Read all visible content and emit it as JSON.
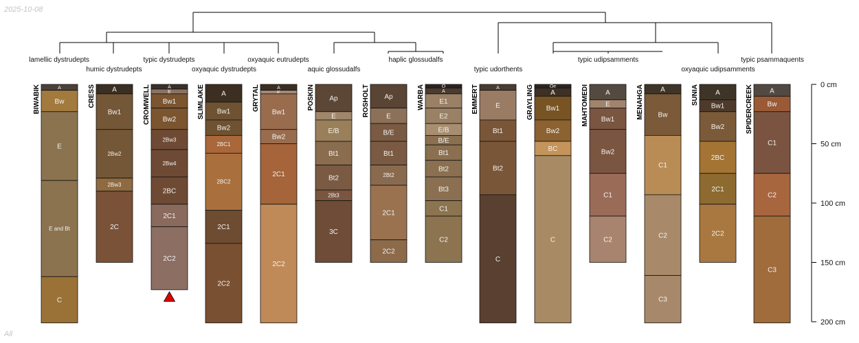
{
  "date_stamp": "2025-10-08",
  "footer_tag": "All",
  "depth_axis": {
    "unit": "cm",
    "max_depth_cm": 200,
    "ticks": [
      {
        "value": 0,
        "label": "0 cm"
      },
      {
        "value": 50,
        "label": "50 cm"
      },
      {
        "value": 100,
        "label": "100 cm"
      },
      {
        "value": 150,
        "label": "150 cm"
      },
      {
        "value": 200,
        "label": "200 cm"
      }
    ]
  },
  "taxa": [
    {
      "label": "lamellic dystrudepts"
    },
    {
      "label": "humic dystrudepts"
    },
    {
      "label": "typic dystrudepts"
    },
    {
      "label": "oxyaquic dystrudepts"
    },
    {
      "label": "oxyaquic eutrudepts"
    },
    {
      "label": "aquic glossudalfs"
    },
    {
      "label": "haplic glossudalfs"
    },
    {
      "label": "typic udorthents"
    },
    {
      "label": "typic udipsamments"
    },
    {
      "label": "oxyaquic udipsamments"
    },
    {
      "label": "typic psammaquents"
    }
  ],
  "profiles": [
    {
      "name": "BIWABIK",
      "horizons": [
        {
          "name": "A",
          "top": 0,
          "bottom": 5,
          "color": "#4a423a"
        },
        {
          "name": "Bw",
          "top": 5,
          "bottom": 23,
          "color": "#a27a3e"
        },
        {
          "name": "E",
          "top": 23,
          "bottom": 81,
          "color": "#8c7350"
        },
        {
          "name": "E and Bt",
          "top": 81,
          "bottom": 162,
          "color": "#8c7350"
        },
        {
          "name": "C",
          "top": 162,
          "bottom": 201,
          "color": "#9a7238"
        }
      ]
    },
    {
      "name": "CRESS",
      "horizons": [
        {
          "name": "A",
          "top": 0,
          "bottom": 8,
          "color": "#3b2e22"
        },
        {
          "name": "Bw1",
          "top": 8,
          "bottom": 38,
          "color": "#745737"
        },
        {
          "name": "2Bw2",
          "top": 38,
          "bottom": 79,
          "color": "#745737"
        },
        {
          "name": "2Bw3",
          "top": 79,
          "bottom": 90,
          "color": "#8f6a40"
        },
        {
          "name": "2C",
          "top": 90,
          "bottom": 150,
          "color": "#7a5238"
        }
      ]
    },
    {
      "name": "CROMWELL",
      "horizons": [
        {
          "name": "A",
          "top": 0,
          "bottom": 4,
          "color": "#3a3028"
        },
        {
          "name": "E",
          "top": 4,
          "bottom": 8,
          "color": "#8c7262"
        },
        {
          "name": "Bw1",
          "top": 8,
          "bottom": 20,
          "color": "#7a5530"
        },
        {
          "name": "Bw2",
          "top": 20,
          "bottom": 38,
          "color": "#7a5530"
        },
        {
          "name": "2Bw3",
          "top": 38,
          "bottom": 55,
          "color": "#6e4a34"
        },
        {
          "name": "2Bw4",
          "top": 55,
          "bottom": 78,
          "color": "#6e4a34"
        },
        {
          "name": "2BC",
          "top": 78,
          "bottom": 101,
          "color": "#6e4a34"
        },
        {
          "name": "2C1",
          "top": 101,
          "bottom": 120,
          "color": "#8a6a5c"
        },
        {
          "name": "2C2",
          "top": 120,
          "bottom": 173,
          "color": "#8c6e62"
        }
      ],
      "marker": true
    },
    {
      "name": "SLIMLAKE",
      "horizons": [
        {
          "name": "A",
          "top": 0,
          "bottom": 15,
          "color": "#3c2f22"
        },
        {
          "name": "Bw1",
          "top": 15,
          "bottom": 30,
          "color": "#6e5232"
        },
        {
          "name": "Bw2",
          "top": 30,
          "bottom": 43,
          "color": "#6e5232"
        },
        {
          "name": "2BC1",
          "top": 43,
          "bottom": 58,
          "color": "#a9673a"
        },
        {
          "name": "2BC2",
          "top": 58,
          "bottom": 106,
          "color": "#a9703e"
        },
        {
          "name": "2C1",
          "top": 106,
          "bottom": 134,
          "color": "#6e4c32"
        },
        {
          "name": "2C2",
          "top": 134,
          "bottom": 201,
          "color": "#7a5032"
        }
      ]
    },
    {
      "name": "GRYTAL",
      "horizons": [
        {
          "name": "A",
          "top": 0,
          "bottom": 5,
          "color": "#3c2f22"
        },
        {
          "name": "E",
          "top": 5,
          "bottom": 8,
          "color": "#a08a7a"
        },
        {
          "name": "Bw1",
          "top": 8,
          "bottom": 38,
          "color": "#9a6c4e"
        },
        {
          "name": "Bw2",
          "top": 38,
          "bottom": 50,
          "color": "#9a6c4e"
        },
        {
          "name": "2C1",
          "top": 50,
          "bottom": 101,
          "color": "#a5643a"
        },
        {
          "name": "2C2",
          "top": 101,
          "bottom": 201,
          "color": "#c08a58"
        }
      ]
    },
    {
      "name": "POSKIN",
      "horizons": [
        {
          "name": "Ap",
          "top": 0,
          "bottom": 23,
          "color": "#5c4636"
        },
        {
          "name": "E",
          "top": 23,
          "bottom": 30,
          "color": "#a0866a"
        },
        {
          "name": "E/B",
          "top": 30,
          "bottom": 48,
          "color": "#9a805a"
        },
        {
          "name": "Bt1",
          "top": 48,
          "bottom": 68,
          "color": "#8a6c4e"
        },
        {
          "name": "Bt2",
          "top": 68,
          "bottom": 89,
          "color": "#7a5a42"
        },
        {
          "name": "2Bt3",
          "top": 89,
          "bottom": 98,
          "color": "#7a5540"
        },
        {
          "name": "3C",
          "top": 98,
          "bottom": 150,
          "color": "#6e4c38"
        }
      ]
    },
    {
      "name": "ROSHOLT",
      "horizons": [
        {
          "name": "Ap",
          "top": 0,
          "bottom": 20,
          "color": "#5a4434"
        },
        {
          "name": "E",
          "top": 20,
          "bottom": 33,
          "color": "#8c7058"
        },
        {
          "name": "B/E",
          "top": 33,
          "bottom": 48,
          "color": "#7a5a42"
        },
        {
          "name": "Bt1",
          "top": 48,
          "bottom": 68,
          "color": "#7a5a42"
        },
        {
          "name": "2Bt2",
          "top": 68,
          "bottom": 85,
          "color": "#8a6a4e"
        },
        {
          "name": "2C1",
          "top": 85,
          "bottom": 131,
          "color": "#9a7250"
        },
        {
          "name": "2C2",
          "top": 131,
          "bottom": 150,
          "color": "#8c6a4a"
        }
      ]
    },
    {
      "name": "WARBA",
      "horizons": [
        {
          "name": "O",
          "top": 0,
          "bottom": 3,
          "color": "#2e2420"
        },
        {
          "name": "A",
          "top": 3,
          "bottom": 8,
          "color": "#4a3c30"
        },
        {
          "name": "E1",
          "top": 8,
          "bottom": 20,
          "color": "#9a8064"
        },
        {
          "name": "E2",
          "top": 20,
          "bottom": 33,
          "color": "#9a8064"
        },
        {
          "name": "E/B",
          "top": 33,
          "bottom": 43,
          "color": "#a88e70"
        },
        {
          "name": "B/E",
          "top": 43,
          "bottom": 51,
          "color": "#8a7050"
        },
        {
          "name": "Bt1",
          "top": 51,
          "bottom": 64,
          "color": "#8a7050"
        },
        {
          "name": "Bt2",
          "top": 64,
          "bottom": 78,
          "color": "#8a7050"
        },
        {
          "name": "Bt3",
          "top": 78,
          "bottom": 98,
          "color": "#8a7050"
        },
        {
          "name": "C1",
          "top": 98,
          "bottom": 111,
          "color": "#8c7450"
        },
        {
          "name": "C2",
          "top": 111,
          "bottom": 150,
          "color": "#8c7450"
        }
      ]
    },
    {
      "name": "EMMERT",
      "horizons": [
        {
          "name": "A",
          "top": 0,
          "bottom": 5,
          "color": "#4a3c30"
        },
        {
          "name": "E",
          "top": 5,
          "bottom": 30,
          "color": "#9a7c64"
        },
        {
          "name": "Bt1",
          "top": 30,
          "bottom": 48,
          "color": "#7a5638"
        },
        {
          "name": "Bt2",
          "top": 48,
          "bottom": 93,
          "color": "#7a5638"
        },
        {
          "name": "C",
          "top": 93,
          "bottom": 201,
          "color": "#5a4030"
        }
      ]
    },
    {
      "name": "GRAYLING",
      "horizons": [
        {
          "name": "Oe",
          "top": 0,
          "bottom": 3,
          "color": "#2e2620"
        },
        {
          "name": "A",
          "top": 3,
          "bottom": 10,
          "color": "#3e3024"
        },
        {
          "name": "Bw1",
          "top": 10,
          "bottom": 30,
          "color": "#785424"
        },
        {
          "name": "Bw2",
          "top": 30,
          "bottom": 48,
          "color": "#8c6230"
        },
        {
          "name": "BC",
          "top": 48,
          "bottom": 60,
          "color": "#c4945a"
        },
        {
          "name": "C",
          "top": 60,
          "bottom": 201,
          "color": "#a88a64"
        }
      ]
    },
    {
      "name": "MAHTOMEDI",
      "horizons": [
        {
          "name": "A",
          "top": 0,
          "bottom": 13,
          "color": "#544a40"
        },
        {
          "name": "E",
          "top": 13,
          "bottom": 20,
          "color": "#a0846c"
        },
        {
          "name": "Bw1",
          "top": 20,
          "bottom": 38,
          "color": "#7a5540"
        },
        {
          "name": "Bw2",
          "top": 38,
          "bottom": 75,
          "color": "#7a5540"
        },
        {
          "name": "C1",
          "top": 75,
          "bottom": 111,
          "color": "#9a6c58"
        },
        {
          "name": "C2",
          "top": 111,
          "bottom": 150,
          "color": "#a8846e"
        }
      ]
    },
    {
      "name": "MENAHGA",
      "horizons": [
        {
          "name": "A",
          "top": 0,
          "bottom": 8,
          "color": "#3e3428"
        },
        {
          "name": "Bw",
          "top": 8,
          "bottom": 43,
          "color": "#7a5a38"
        },
        {
          "name": "C1",
          "top": 43,
          "bottom": 93,
          "color": "#b88c54"
        },
        {
          "name": "C2",
          "top": 93,
          "bottom": 161,
          "color": "#a88a6a"
        },
        {
          "name": "C3",
          "top": 161,
          "bottom": 201,
          "color": "#a8886a"
        }
      ]
    },
    {
      "name": "SUNIA",
      "horizons": [
        {
          "name": "A",
          "top": 0,
          "bottom": 13,
          "color": "#3e3428"
        },
        {
          "name": "Bw1",
          "top": 13,
          "bottom": 23,
          "color": "#4e3a2a"
        },
        {
          "name": "Bw2",
          "top": 23,
          "bottom": 48,
          "color": "#7a5a38"
        },
        {
          "name": "2BC",
          "top": 48,
          "bottom": 75,
          "color": "#a47434"
        },
        {
          "name": "2C1",
          "top": 75,
          "bottom": 101,
          "color": "#8c6a30"
        },
        {
          "name": "2C2",
          "top": 101,
          "bottom": 150,
          "color": "#a87840"
        }
      ]
    },
    {
      "name": "SPIDERCREEK",
      "horizons": [
        {
          "name": "A",
          "top": 0,
          "bottom": 10,
          "color": "#524a42"
        },
        {
          "name": "Bw",
          "top": 10,
          "bottom": 23,
          "color": "#9a5a36"
        },
        {
          "name": "C1",
          "top": 23,
          "bottom": 75,
          "color": "#7a5440"
        },
        {
          "name": "C2",
          "top": 75,
          "bottom": 111,
          "color": "#a8663e"
        },
        {
          "name": "C3",
          "top": 111,
          "bottom": 201,
          "color": "#a06c3c"
        }
      ]
    }
  ]
}
